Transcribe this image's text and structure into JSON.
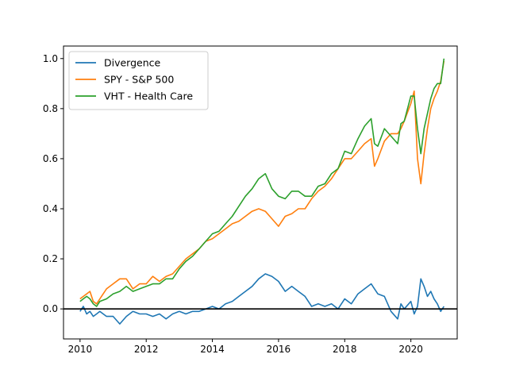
{
  "chart_data": {
    "type": "line",
    "title": "",
    "xlabel": "",
    "ylabel": "",
    "xlim": [
      2009.5,
      2021.4
    ],
    "ylim": [
      -0.12,
      1.05
    ],
    "xticks": [
      2010,
      2012,
      2014,
      2016,
      2018,
      2020
    ],
    "xtick_labels": [
      "2010",
      "2012",
      "2014",
      "2016",
      "2018",
      "2020"
    ],
    "yticks": [
      0.0,
      0.2,
      0.4,
      0.6,
      0.8,
      1.0
    ],
    "ytick_labels": [
      "0.0",
      "0.2",
      "0.4",
      "0.6",
      "0.8",
      "1.0"
    ],
    "grid": false,
    "legend": "top-left",
    "reference_line": {
      "y": 0.0,
      "color": "#000000"
    },
    "series": [
      {
        "name": "Divergence",
        "color": "#1f77b4",
        "x": [
          2010.0,
          2010.1,
          2010.2,
          2010.3,
          2010.4,
          2010.5,
          2010.6,
          2010.8,
          2011.0,
          2011.2,
          2011.4,
          2011.6,
          2011.8,
          2012.0,
          2012.2,
          2012.4,
          2012.6,
          2012.8,
          2013.0,
          2013.2,
          2013.4,
          2013.6,
          2013.8,
          2014.0,
          2014.2,
          2014.4,
          2014.6,
          2014.8,
          2015.0,
          2015.2,
          2015.4,
          2015.6,
          2015.8,
          2016.0,
          2016.2,
          2016.4,
          2016.6,
          2016.8,
          2017.0,
          2017.2,
          2017.4,
          2017.6,
          2017.8,
          2018.0,
          2018.2,
          2018.4,
          2018.6,
          2018.8,
          2018.9,
          2019.0,
          2019.2,
          2019.4,
          2019.6,
          2019.7,
          2019.8,
          2020.0,
          2020.1,
          2020.2,
          2020.3,
          2020.4,
          2020.5,
          2020.6,
          2020.7,
          2020.8,
          2020.9,
          2021.0
        ],
        "y": [
          -0.01,
          0.01,
          -0.02,
          -0.01,
          -0.03,
          -0.02,
          -0.01,
          -0.03,
          -0.03,
          -0.06,
          -0.03,
          -0.01,
          -0.02,
          -0.02,
          -0.03,
          -0.02,
          -0.04,
          -0.02,
          -0.01,
          -0.02,
          -0.01,
          -0.01,
          0.0,
          0.01,
          0.0,
          0.02,
          0.03,
          0.05,
          0.07,
          0.09,
          0.12,
          0.14,
          0.13,
          0.11,
          0.07,
          0.09,
          0.07,
          0.05,
          0.01,
          0.02,
          0.01,
          0.02,
          0.0,
          0.04,
          0.02,
          0.06,
          0.08,
          0.1,
          0.08,
          0.06,
          0.05,
          -0.01,
          -0.04,
          0.02,
          0.0,
          0.03,
          -0.02,
          0.01,
          0.12,
          0.09,
          0.05,
          0.07,
          0.04,
          0.02,
          -0.01,
          0.01
        ]
      },
      {
        "name": "SPY - S&P 500",
        "color": "#ff7f0e",
        "x": [
          2010.0,
          2010.1,
          2010.2,
          2010.3,
          2010.4,
          2010.5,
          2010.6,
          2010.8,
          2011.0,
          2011.2,
          2011.4,
          2011.6,
          2011.8,
          2012.0,
          2012.2,
          2012.4,
          2012.6,
          2012.8,
          2013.0,
          2013.2,
          2013.4,
          2013.6,
          2013.8,
          2014.0,
          2014.2,
          2014.4,
          2014.6,
          2014.8,
          2015.0,
          2015.2,
          2015.4,
          2015.6,
          2015.8,
          2016.0,
          2016.2,
          2016.4,
          2016.6,
          2016.8,
          2017.0,
          2017.2,
          2017.4,
          2017.6,
          2017.8,
          2018.0,
          2018.2,
          2018.4,
          2018.6,
          2018.8,
          2018.9,
          2019.0,
          2019.2,
          2019.4,
          2019.6,
          2019.7,
          2019.8,
          2020.0,
          2020.1,
          2020.2,
          2020.3,
          2020.4,
          2020.5,
          2020.6,
          2020.7,
          2020.8,
          2020.9,
          2021.0
        ],
        "y": [
          0.04,
          0.05,
          0.06,
          0.07,
          0.03,
          0.02,
          0.04,
          0.08,
          0.1,
          0.12,
          0.12,
          0.08,
          0.1,
          0.1,
          0.13,
          0.11,
          0.13,
          0.14,
          0.17,
          0.2,
          0.22,
          0.24,
          0.27,
          0.28,
          0.3,
          0.32,
          0.34,
          0.35,
          0.37,
          0.39,
          0.4,
          0.39,
          0.36,
          0.33,
          0.37,
          0.38,
          0.4,
          0.4,
          0.44,
          0.47,
          0.49,
          0.52,
          0.56,
          0.6,
          0.6,
          0.63,
          0.66,
          0.68,
          0.57,
          0.6,
          0.67,
          0.7,
          0.7,
          0.72,
          0.75,
          0.82,
          0.87,
          0.6,
          0.5,
          0.62,
          0.72,
          0.8,
          0.84,
          0.87,
          0.91,
          0.99
        ]
      },
      {
        "name": "VHT - Health Care",
        "color": "#2ca02c",
        "x": [
          2010.0,
          2010.1,
          2010.2,
          2010.3,
          2010.4,
          2010.5,
          2010.6,
          2010.8,
          2011.0,
          2011.2,
          2011.4,
          2011.6,
          2011.8,
          2012.0,
          2012.2,
          2012.4,
          2012.6,
          2012.8,
          2013.0,
          2013.2,
          2013.4,
          2013.6,
          2013.8,
          2014.0,
          2014.2,
          2014.4,
          2014.6,
          2014.8,
          2015.0,
          2015.2,
          2015.4,
          2015.6,
          2015.8,
          2016.0,
          2016.2,
          2016.4,
          2016.6,
          2016.8,
          2017.0,
          2017.2,
          2017.4,
          2017.6,
          2017.8,
          2018.0,
          2018.2,
          2018.4,
          2018.6,
          2018.8,
          2018.9,
          2019.0,
          2019.2,
          2019.4,
          2019.6,
          2019.7,
          2019.8,
          2020.0,
          2020.1,
          2020.2,
          2020.3,
          2020.4,
          2020.5,
          2020.6,
          2020.7,
          2020.8,
          2020.9,
          2021.0
        ],
        "y": [
          0.03,
          0.04,
          0.05,
          0.04,
          0.02,
          0.01,
          0.03,
          0.04,
          0.06,
          0.07,
          0.09,
          0.07,
          0.08,
          0.09,
          0.1,
          0.1,
          0.12,
          0.12,
          0.16,
          0.19,
          0.21,
          0.24,
          0.27,
          0.3,
          0.31,
          0.34,
          0.37,
          0.41,
          0.45,
          0.48,
          0.52,
          0.54,
          0.48,
          0.45,
          0.44,
          0.47,
          0.47,
          0.45,
          0.45,
          0.49,
          0.5,
          0.54,
          0.56,
          0.63,
          0.62,
          0.68,
          0.73,
          0.76,
          0.66,
          0.65,
          0.72,
          0.69,
          0.66,
          0.74,
          0.75,
          0.85,
          0.85,
          0.72,
          0.62,
          0.72,
          0.78,
          0.84,
          0.88,
          0.9,
          0.9,
          1.0
        ]
      }
    ]
  }
}
